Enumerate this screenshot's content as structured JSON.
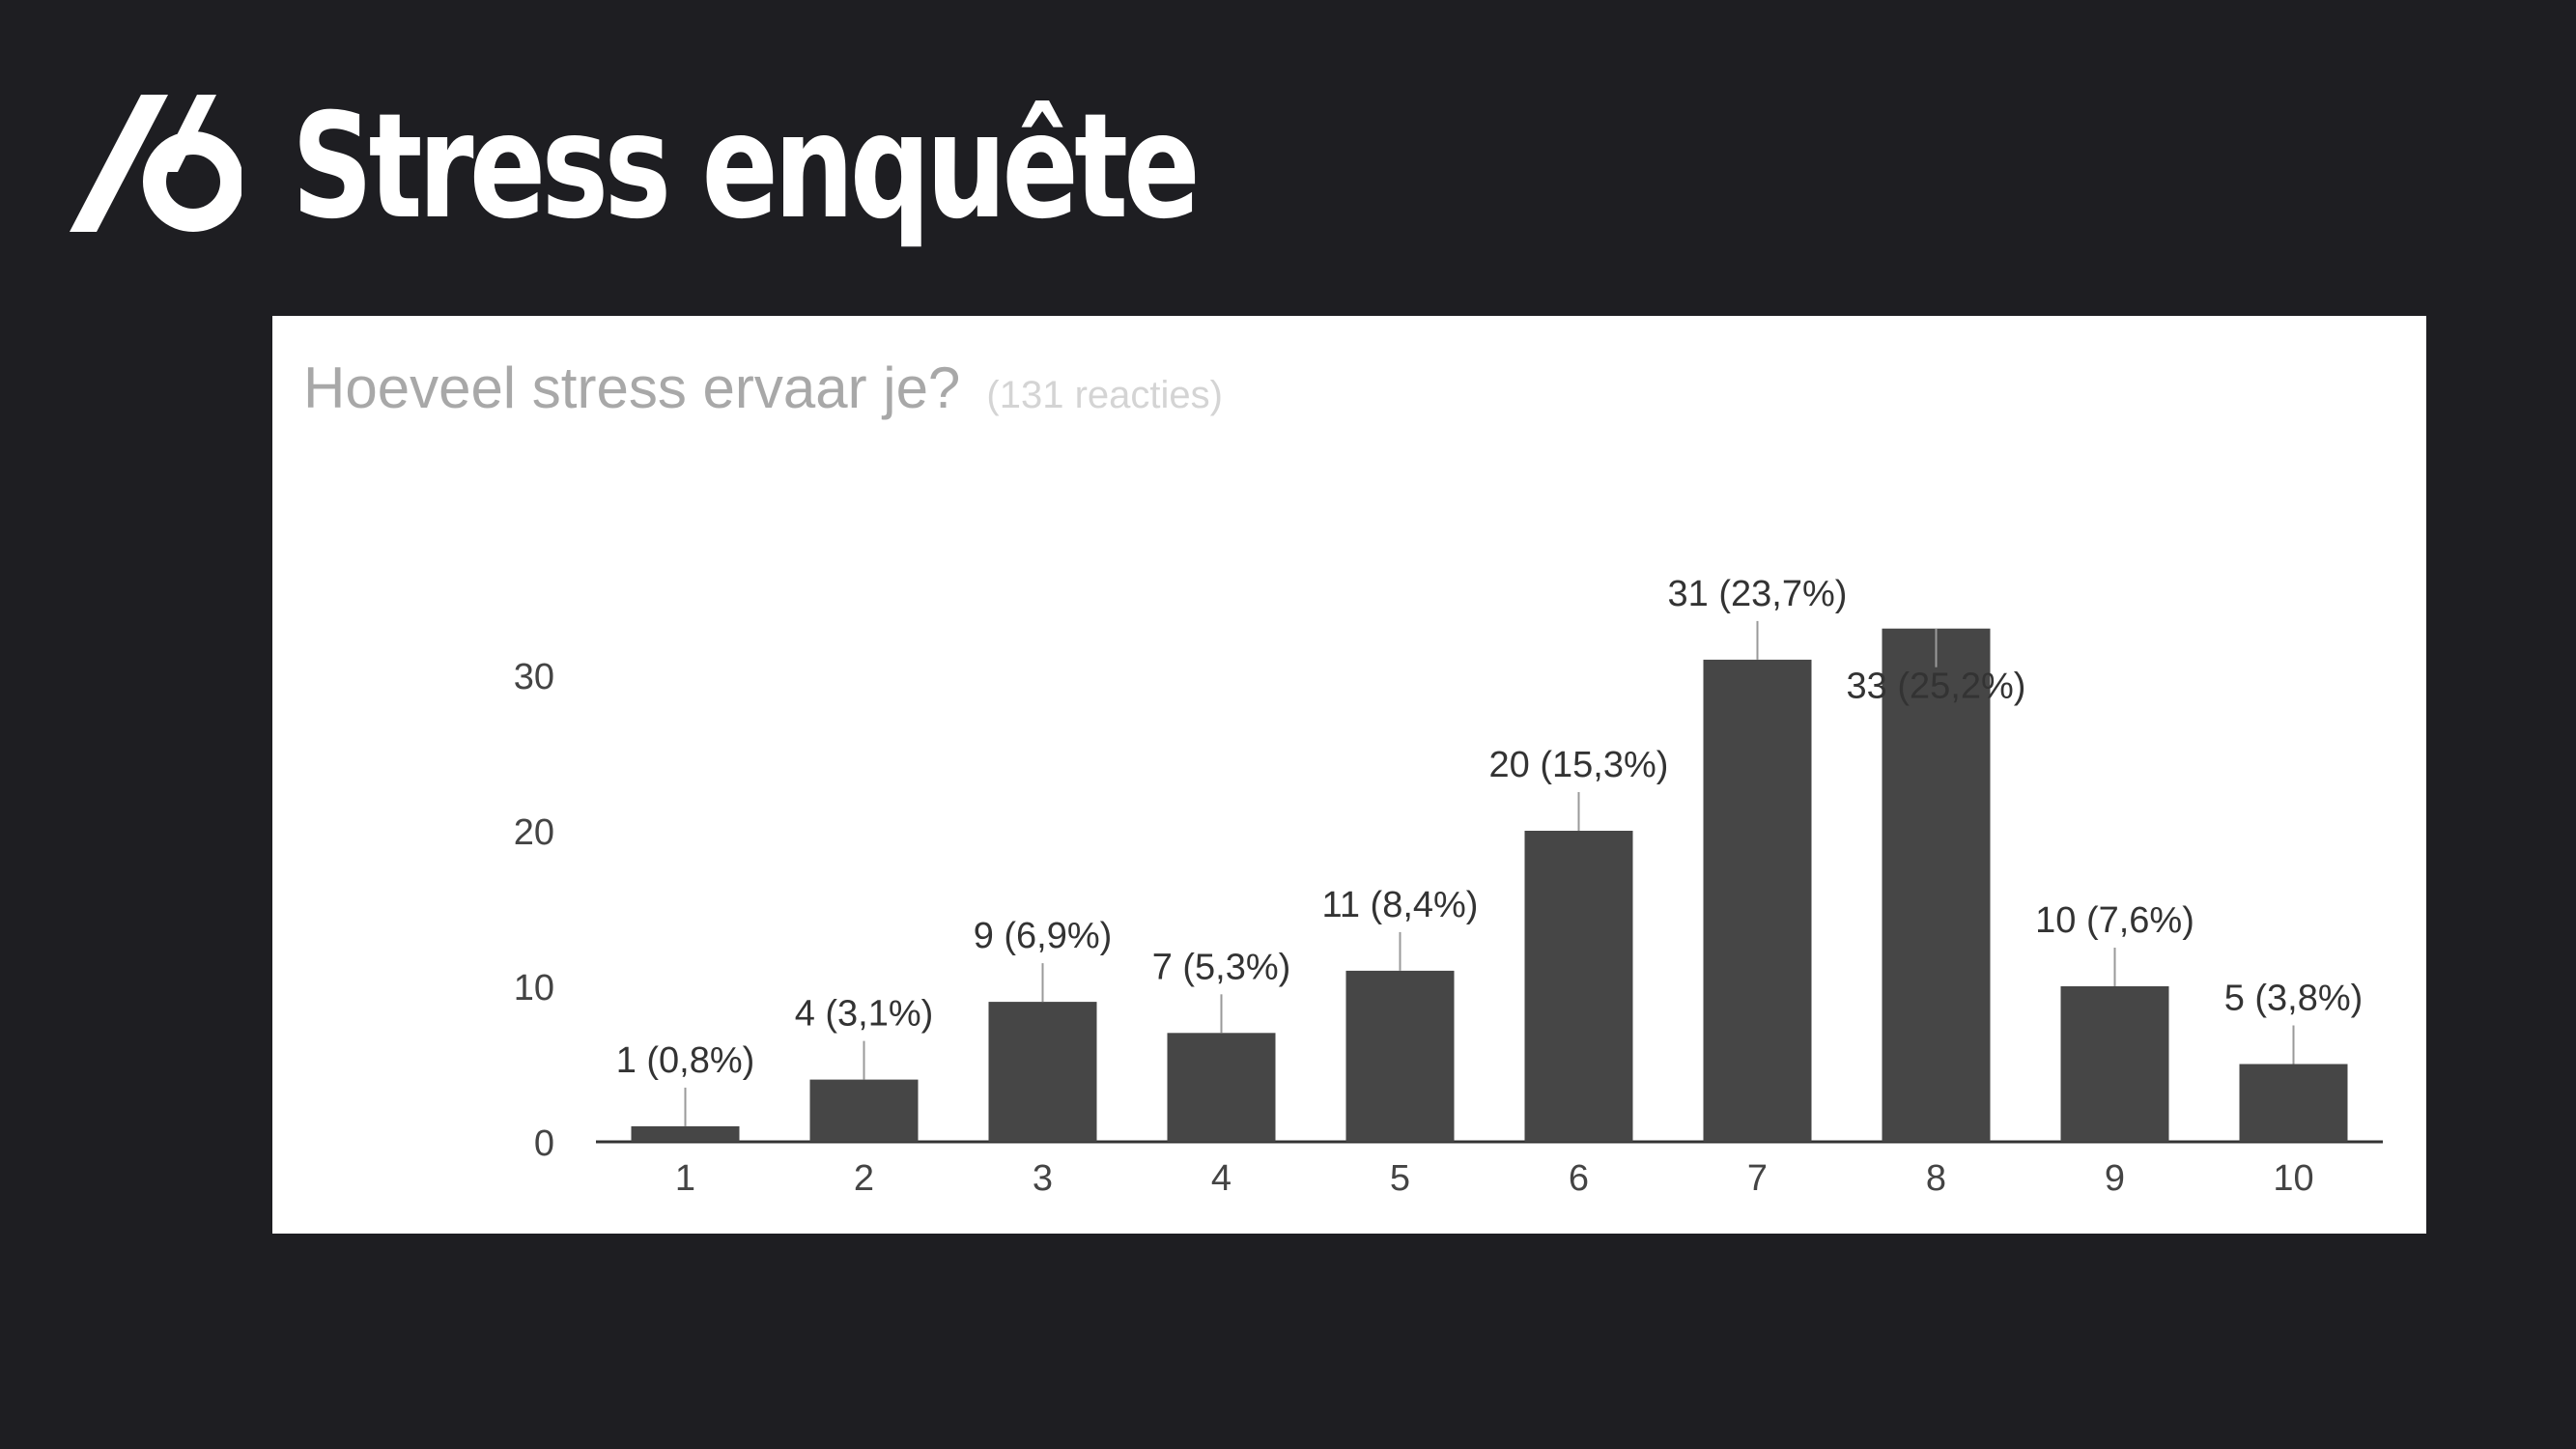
{
  "slide": {
    "title": "Stress enquête",
    "logo_icon": "slash-six-logo-icon"
  },
  "colors": {
    "background": "#1e1e22",
    "card": "#ffffff",
    "bar": "#464646",
    "title_text": "#ffffff"
  },
  "chart_data": {
    "type": "bar",
    "title": "Hoeveel stress ervaar je?",
    "subtitle": "(131 reacties)",
    "xlabel": "",
    "ylabel": "",
    "categories": [
      "1",
      "2",
      "3",
      "4",
      "5",
      "6",
      "7",
      "8",
      "9",
      "10"
    ],
    "values": [
      1,
      4,
      9,
      7,
      11,
      20,
      31,
      33,
      10,
      5
    ],
    "data_labels": [
      "1 (0,8%)",
      "4 (3,1%)",
      "9 (6,9%)",
      "7 (5,3%)",
      "11 (8,4%)",
      "20 (15,3%)",
      "31 (23,7%)",
      "33 (25,2%)",
      "10 (7,6%)",
      "5 (3,8%)"
    ],
    "yticks": [
      0,
      10,
      20,
      30
    ],
    "ylim": [
      0,
      33
    ],
    "grid": false,
    "legend": "none"
  }
}
